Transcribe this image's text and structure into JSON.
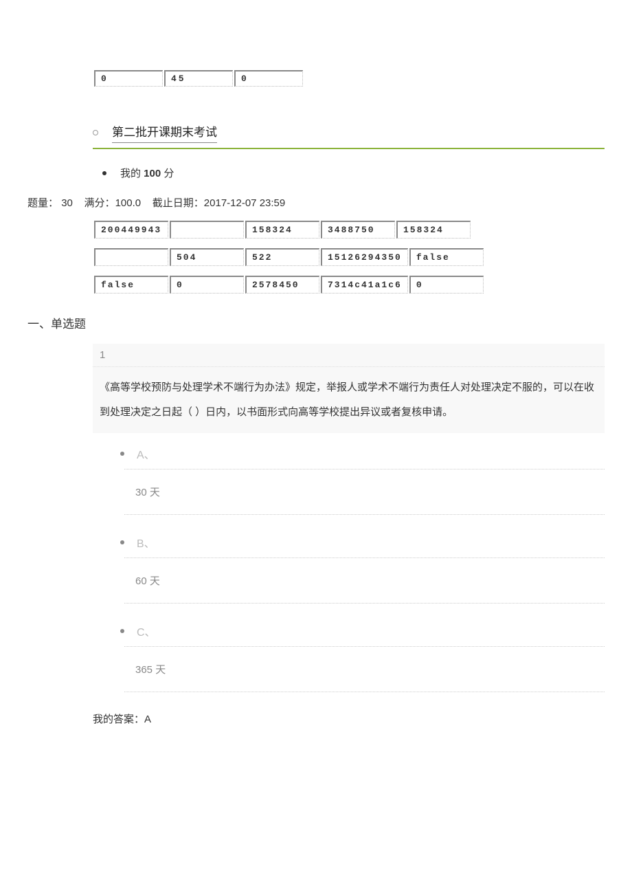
{
  "top_table": {
    "c1": "0",
    "c2": "45",
    "c3": "0"
  },
  "tab_title": "第二批开课期末考试",
  "score_text_left": "我的 ",
  "score_num": "100",
  "score_text_right": " 分",
  "info": {
    "prefix1": "题量：",
    "count": "30",
    "prefix2": "满分：",
    "full": "100.0",
    "prefix3": "截止日期：",
    "deadline": "2017-12-07 23:59"
  },
  "data_row1": {
    "c1": "200449943",
    "c2": "",
    "c3": "158324",
    "c4": "3488750",
    "c5": "158324"
  },
  "data_row2": {
    "c1": "",
    "c2": "504",
    "c3": "522",
    "c4": "15126294350",
    "c5": "false"
  },
  "data_row3": {
    "c1": "false",
    "c2": "0",
    "c3": "2578450",
    "c4": "7314c41a1c6",
    "c5": "0"
  },
  "section1": "一、单选题",
  "q1": {
    "num": "1",
    "text": "《高等学校预防与处理学术不端行为办法》规定，举报人或学术不端行为责任人对处理决定不服的，可以在收到处理决定之日起（ ）日内，以书面形式向高等学校提出异议或者复核申请。",
    "opts": {
      "A": {
        "label": "A、",
        "text": "30 天"
      },
      "B": {
        "label": "B、",
        "text": "60 天"
      },
      "C": {
        "label": "C、",
        "text": "365 天"
      }
    }
  },
  "answer_label": "我的答案：",
  "answer_val": "A"
}
